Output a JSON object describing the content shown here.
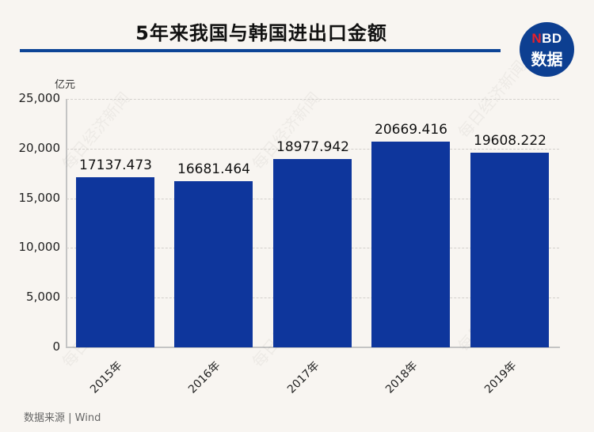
{
  "header": {
    "title": "5年来我国与韩国进出口金额",
    "logo_line1_accent": "N",
    "logo_line1_rest": "BD",
    "logo_line2": "数据"
  },
  "watermark": "每日经济新闻",
  "footer": {
    "source": "数据来源 | Wind"
  },
  "colors": {
    "background": "#f8f5f1",
    "bar": "#0e369c",
    "title_rule": "#0d4496",
    "logo_bg": "#0d3f91",
    "logo_accent": "#e8202a"
  },
  "chart_data": {
    "type": "bar",
    "title": "5年来我国与韩国进出口金额",
    "xlabel": "",
    "ylabel": "亿元",
    "categories": [
      "2015年",
      "2016年",
      "2017年",
      "2018年",
      "2019年"
    ],
    "values": [
      17137.473,
      16681.464,
      18977.942,
      20669.416,
      19608.222
    ],
    "value_labels": [
      "17137.473",
      "16681.464",
      "18977.942",
      "20669.416",
      "19608.222"
    ],
    "ylim": [
      0,
      25000
    ],
    "yticks": [
      0,
      5000,
      10000,
      15000,
      20000,
      25000
    ],
    "ytick_labels": [
      "0",
      "5,000",
      "10,000",
      "15,000",
      "20,000",
      "25,000"
    ],
    "grid": true,
    "legend": null,
    "source": "数据来源 | Wind"
  }
}
